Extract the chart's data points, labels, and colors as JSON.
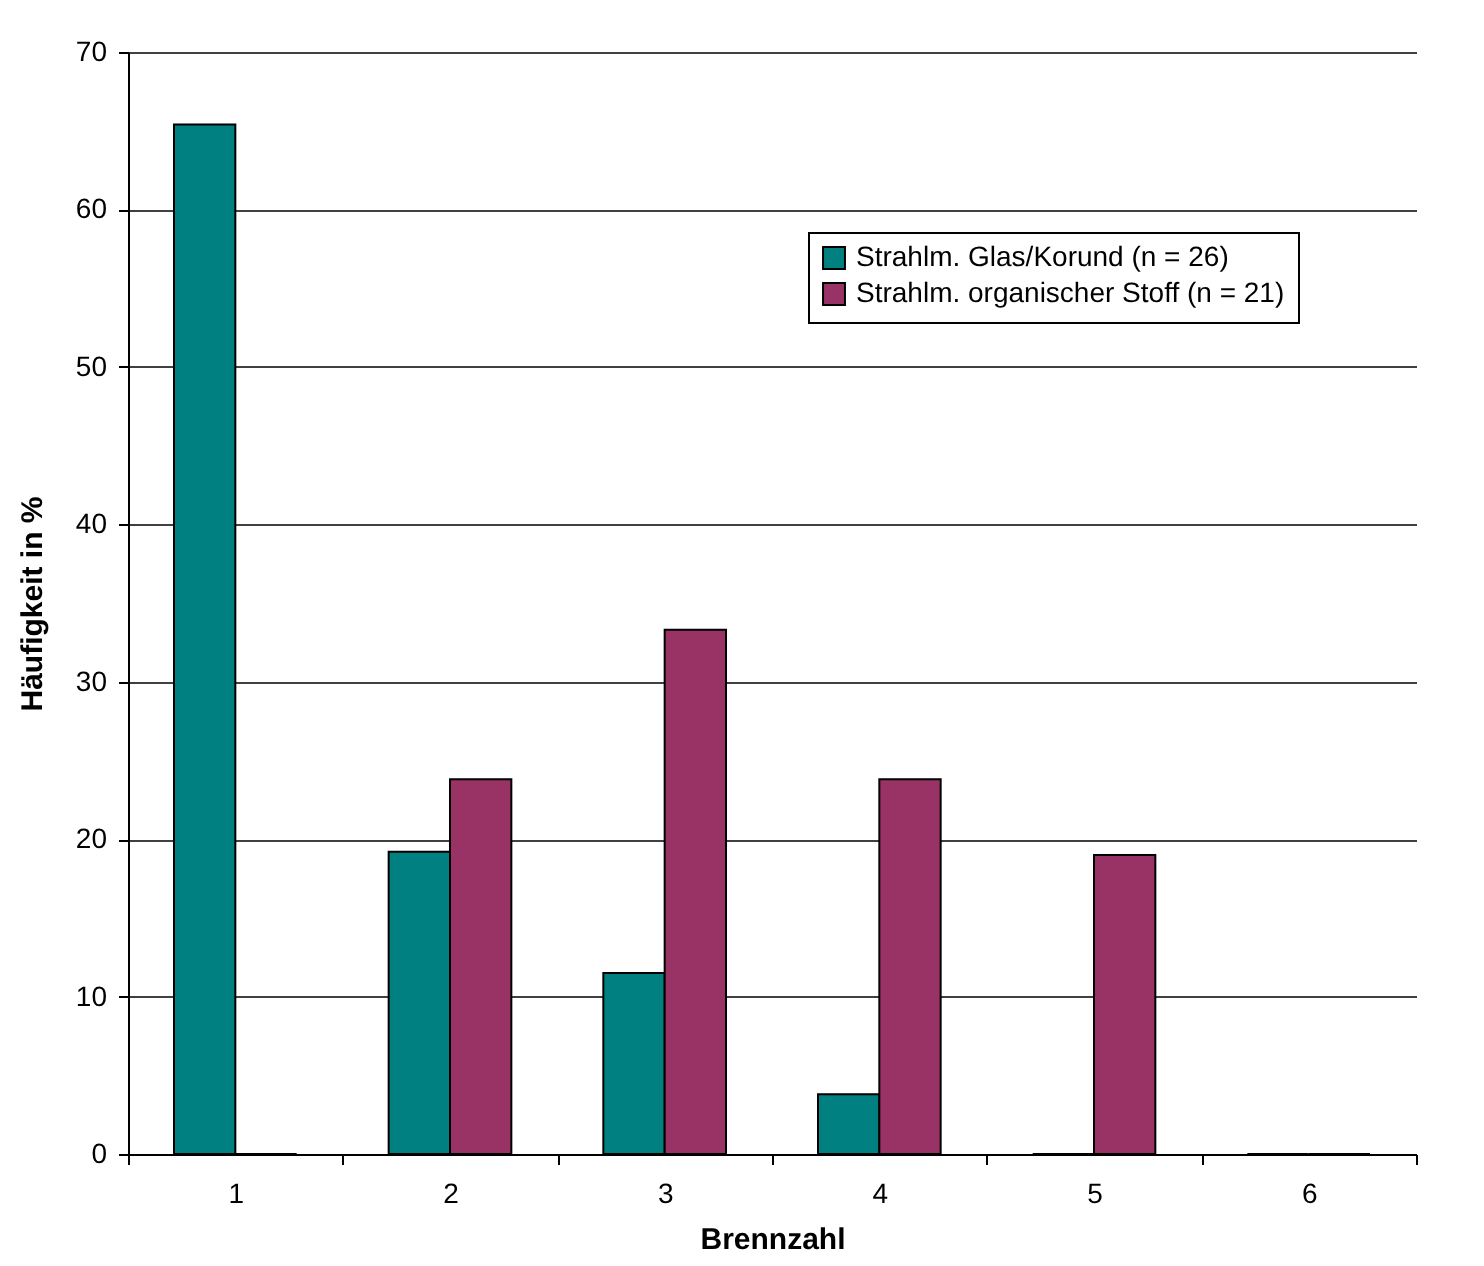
{
  "chart_data": {
    "type": "bar",
    "xlabel": "Brennzahl",
    "ylabel": "Häufigkeit in %",
    "categories": [
      "1",
      "2",
      "3",
      "4",
      "5",
      "6"
    ],
    "series": [
      {
        "name": "Strahlm. Glas/Korund (n = 26)",
        "color": "#008080",
        "values": [
          65.4,
          19.2,
          11.5,
          3.8,
          0,
          0
        ]
      },
      {
        "name": "Strahlm. organischer Stoff (n = 21)",
        "color": "#993366",
        "values": [
          0,
          23.8,
          33.3,
          23.8,
          19.0,
          0
        ]
      }
    ],
    "ylim": [
      0,
      70
    ],
    "yticks": [
      0,
      10,
      20,
      30,
      40,
      50,
      60,
      70
    ],
    "grid": "y",
    "legend": "top right"
  }
}
